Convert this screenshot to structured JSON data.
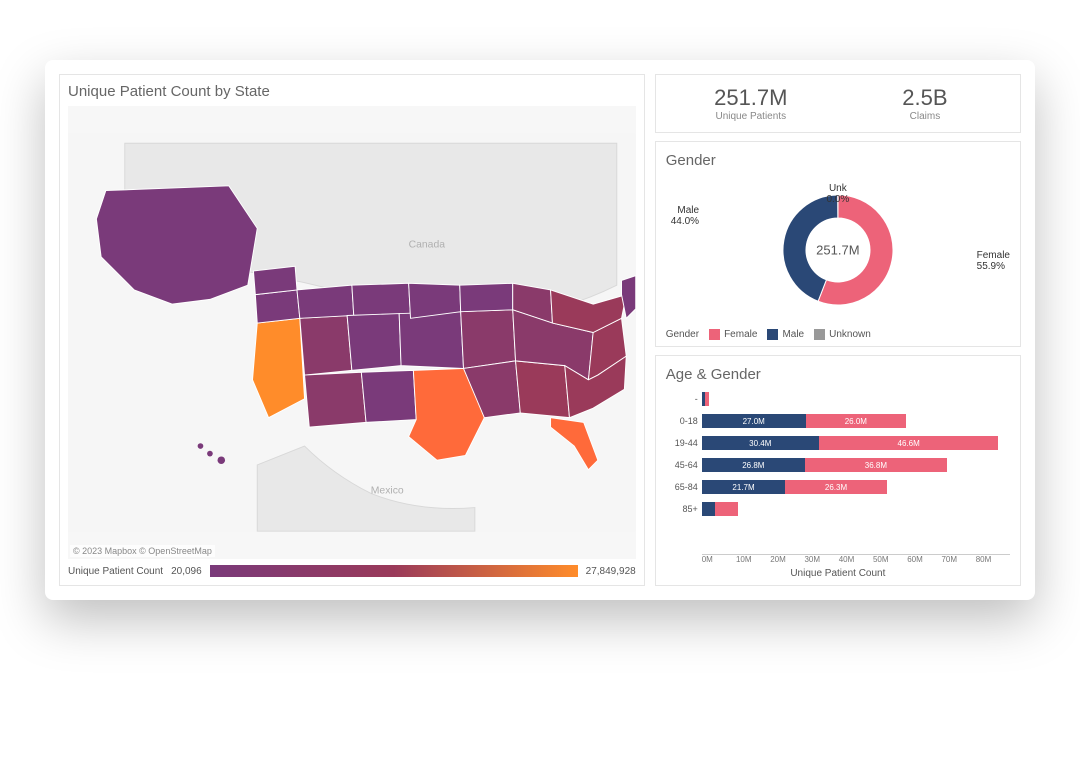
{
  "colors": {
    "female": "#ed6379",
    "male": "#2a4876",
    "unknown": "#999999",
    "panel_border": "#e5e5e5",
    "text_muted": "#666666",
    "map_low": "#7a3a7a",
    "map_mid": "#8a3a5a",
    "map_high": "#ff8c2a",
    "map_bg": "#f2f2f2",
    "map_land": "#e6e6e6"
  },
  "left": {
    "title": "Unique Patient Count by State",
    "attribution": "© 2023 Mapbox  © OpenStreetMap",
    "scale_label": "Unique Patient Count",
    "scale_min": "20,096",
    "scale_max": "27,849,928",
    "map_labels": {
      "canada": "Canada",
      "mexico": "Mexico"
    }
  },
  "kpis": [
    {
      "value": "251.7M",
      "label": "Unique Patients"
    },
    {
      "value": "2.5B",
      "label": "Claims"
    }
  ],
  "gender": {
    "title": "Gender",
    "center": "251.7M",
    "slices": [
      {
        "name": "Female",
        "pct": 55.9,
        "label": "Female\n55.9%",
        "color": "#ed6379"
      },
      {
        "name": "Male",
        "pct": 44.0,
        "label": "Male\n44.0%",
        "color": "#2a4876"
      },
      {
        "name": "Unknown",
        "pct": 0.0,
        "label": "Unk\n0.0%",
        "color": "#999999"
      }
    ],
    "legend_title": "Gender",
    "legend": [
      {
        "label": "Female",
        "color": "#ed6379"
      },
      {
        "label": "Male",
        "color": "#2a4876"
      },
      {
        "label": "Unknown",
        "color": "#999999"
      }
    ]
  },
  "age": {
    "title": "Age & Gender",
    "x_max": 80,
    "x_ticks": [
      "0M",
      "10M",
      "20M",
      "30M",
      "40M",
      "50M",
      "60M",
      "70M",
      "80M"
    ],
    "x_label": "Unique Patient Count",
    "rows": [
      {
        "label": "-",
        "male": 0.8,
        "female": 1.0,
        "male_txt": "",
        "female_txt": ""
      },
      {
        "label": "0-18",
        "male": 27.0,
        "female": 26.0,
        "male_txt": "27.0M",
        "female_txt": "26.0M"
      },
      {
        "label": "19-44",
        "male": 30.4,
        "female": 46.6,
        "male_txt": "30.4M",
        "female_txt": "46.6M"
      },
      {
        "label": "45-64",
        "male": 26.8,
        "female": 36.8,
        "male_txt": "26.8M",
        "female_txt": "36.8M"
      },
      {
        "label": "65-84",
        "male": 21.7,
        "female": 26.3,
        "male_txt": "21.7M",
        "female_txt": "26.3M"
      },
      {
        "label": "85+",
        "male": 3.5,
        "female": 6.0,
        "male_txt": "",
        "female_txt": ""
      }
    ]
  }
}
